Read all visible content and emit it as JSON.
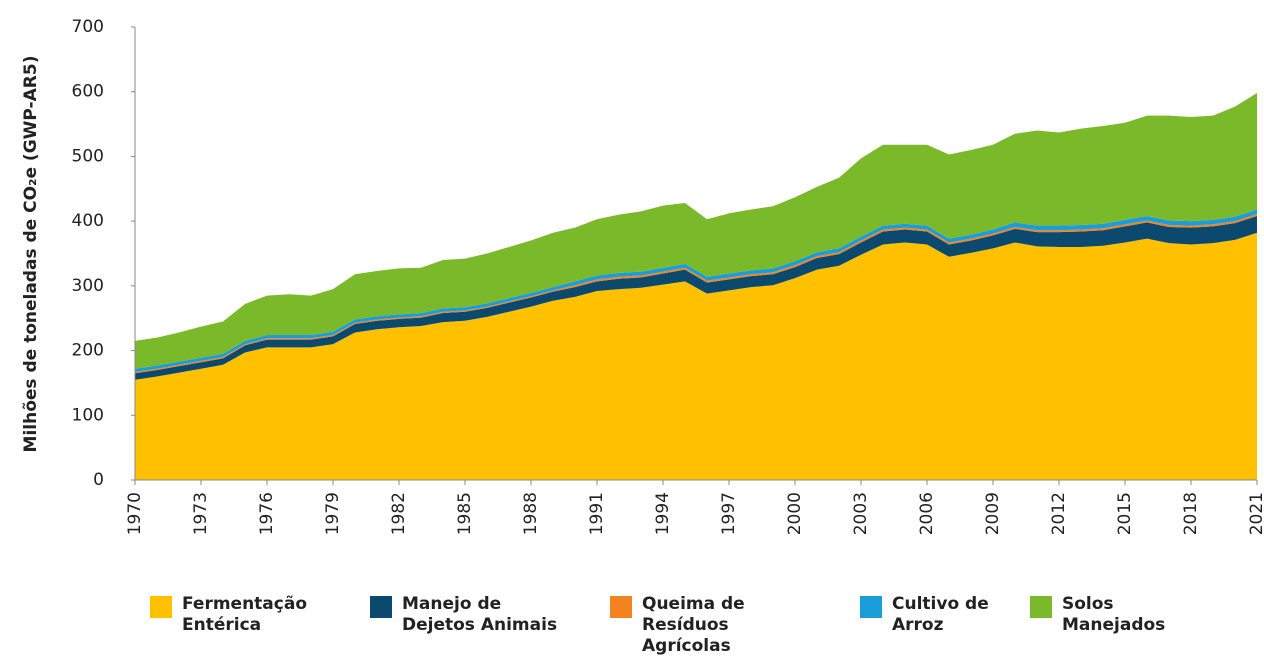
{
  "chart_data": {
    "type": "stacked_area",
    "y_label": "Milhões de toneladas de CO₂e (GWP-AR5)",
    "x": [
      1970,
      1971,
      1972,
      1973,
      1974,
      1975,
      1976,
      1977,
      1978,
      1979,
      1980,
      1981,
      1982,
      1983,
      1984,
      1985,
      1986,
      1987,
      1988,
      1989,
      1990,
      1991,
      1992,
      1993,
      1994,
      1995,
      1996,
      1997,
      1998,
      1999,
      2000,
      2001,
      2002,
      2003,
      2004,
      2005,
      2006,
      2007,
      2008,
      2009,
      2010,
      2011,
      2012,
      2013,
      2014,
      2015,
      2016,
      2017,
      2018,
      2019,
      2020,
      2021
    ],
    "xlim": [
      1970,
      2021
    ],
    "xticks": [
      1970,
      1973,
      1976,
      1979,
      1982,
      1985,
      1988,
      1991,
      1994,
      1997,
      2000,
      2003,
      2006,
      2009,
      2012,
      2015,
      2018,
      2021
    ],
    "ylim": [
      0,
      700
    ],
    "yticks": [
      0,
      100,
      200,
      300,
      400,
      500,
      600,
      700
    ],
    "series": [
      {
        "name": "Fermentação Entérica",
        "color": "#FFC000",
        "values": [
          155,
          160,
          166,
          172,
          178,
          197,
          205,
          205,
          205,
          210,
          228,
          233,
          236,
          238,
          244,
          246,
          252,
          260,
          268,
          277,
          283,
          292,
          295,
          297,
          302,
          307,
          288,
          293,
          298,
          301,
          312,
          325,
          331,
          348,
          364,
          367,
          364,
          345,
          351,
          358,
          367,
          361,
          360,
          360,
          362,
          367,
          373,
          366,
          364,
          366,
          371,
          382
        ]
      },
      {
        "name": "Manejo de Dejetos Animais",
        "color": "#0B4A6E",
        "values": [
          10,
          10,
          10,
          10,
          10,
          11,
          12,
          12,
          12,
          12,
          13,
          13,
          13,
          13,
          14,
          14,
          14,
          14,
          14,
          14,
          15,
          15,
          16,
          16,
          17,
          18,
          17,
          17,
          17,
          17,
          17,
          18,
          18,
          19,
          20,
          20,
          20,
          19,
          19,
          20,
          21,
          22,
          23,
          24,
          24,
          25,
          25,
          25,
          26,
          26,
          26,
          26
        ]
      },
      {
        "name": "Queima de Resíduos Agrícolas",
        "color": "#F58220",
        "values": [
          2,
          2,
          2,
          2,
          2,
          2,
          2,
          2,
          2,
          2,
          2,
          2,
          2,
          2,
          2,
          2,
          2,
          2,
          2,
          2,
          3,
          3,
          3,
          3,
          3,
          3,
          3,
          3,
          3,
          3,
          3,
          3,
          3,
          3,
          3,
          3,
          3,
          3,
          3,
          3,
          3,
          3,
          3,
          3,
          3,
          3,
          3,
          3,
          3,
          3,
          3,
          3
        ]
      },
      {
        "name": "Cultivo de Arroz",
        "color": "#1A9ED9",
        "values": [
          5,
          5,
          5,
          5,
          5,
          5,
          5,
          5,
          5,
          5,
          5,
          5,
          5,
          5,
          5,
          5,
          5,
          5,
          5,
          5,
          6,
          6,
          6,
          6,
          6,
          6,
          6,
          6,
          6,
          6,
          6,
          6,
          6,
          6,
          6,
          6,
          6,
          6,
          6,
          6,
          7,
          7,
          7,
          7,
          7,
          7,
          7,
          7,
          7,
          7,
          7,
          7
        ]
      },
      {
        "name": "Solos Manejados",
        "color": "#7AB929",
        "values": [
          43,
          43,
          45,
          48,
          50,
          57,
          61,
          63,
          61,
          66,
          70,
          70,
          71,
          70,
          75,
          75,
          77,
          79,
          81,
          84,
          83,
          87,
          90,
          93,
          96,
          94,
          89,
          93,
          94,
          96,
          99,
          101,
          109,
          121,
          125,
          122,
          125,
          130,
          131,
          131,
          137,
          147,
          144,
          149,
          151,
          150,
          155,
          162,
          161,
          161,
          170,
          180
        ]
      }
    ]
  }
}
